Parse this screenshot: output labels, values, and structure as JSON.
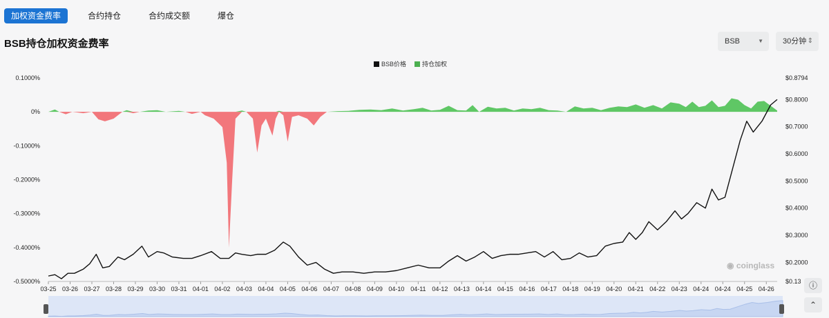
{
  "tabs": [
    {
      "label": "加权资金费率",
      "active": true
    },
    {
      "label": "合约持仓",
      "active": false
    },
    {
      "label": "合约成交额",
      "active": false
    },
    {
      "label": "爆仓",
      "active": false
    }
  ],
  "page_title": "BSB持仓加权资金费率",
  "controls": {
    "symbol_select": "BSB",
    "interval_select": "30分钟"
  },
  "watermark": "coinglass",
  "colors": {
    "accent": "#1c74d3",
    "positive": "#5fc765",
    "negative": "#f2777c",
    "price_line": "#111111"
  },
  "chart_data": {
    "type": "line",
    "legend": [
      {
        "name": "BSB价格",
        "color": "#111111"
      },
      {
        "name": "持仓加权",
        "color": "#4caf50"
      }
    ],
    "x_ticks": [
      "03-25",
      "03-26",
      "03-27",
      "03-28",
      "03-29",
      "03-30",
      "03-31",
      "04-01",
      "04-02",
      "04-03",
      "04-04",
      "04-05",
      "04-06",
      "04-07",
      "04-08",
      "04-09",
      "04-10",
      "04-11",
      "04-12",
      "04-13",
      "04-14",
      "04-15",
      "04-16",
      "04-17",
      "04-18",
      "04-19",
      "04-20",
      "04-21",
      "04-22",
      "04-23",
      "04-24",
      "04-24",
      "04-25",
      "04-26"
    ],
    "y_left_ticks": [
      "0.1000%",
      "0%",
      "-0.1000%",
      "-0.2000%",
      "-0.3000%",
      "-0.4000%",
      "-0.5000%"
    ],
    "y_left_range": [
      -0.5,
      0.1
    ],
    "y_right_ticks": [
      "$0.8794",
      "$0.8000",
      "$0.7000",
      "$0.6000",
      "$0.5000",
      "$0.4000",
      "$0.3000",
      "$0.2000",
      "$0.13"
    ],
    "y_right_range": [
      0.13,
      0.8794
    ],
    "x_range": [
      0,
      33.5
    ],
    "series": [
      {
        "name": "BSB价格",
        "axis": "right",
        "points": [
          [
            0,
            0.15
          ],
          [
            0.3,
            0.155
          ],
          [
            0.6,
            0.14
          ],
          [
            0.9,
            0.16
          ],
          [
            1.2,
            0.16
          ],
          [
            1.6,
            0.175
          ],
          [
            1.9,
            0.195
          ],
          [
            2.2,
            0.23
          ],
          [
            2.5,
            0.18
          ],
          [
            2.8,
            0.185
          ],
          [
            3.2,
            0.22
          ],
          [
            3.5,
            0.21
          ],
          [
            3.9,
            0.23
          ],
          [
            4.3,
            0.26
          ],
          [
            4.6,
            0.22
          ],
          [
            5.0,
            0.24
          ],
          [
            5.3,
            0.235
          ],
          [
            5.7,
            0.22
          ],
          [
            6.2,
            0.215
          ],
          [
            6.6,
            0.215
          ],
          [
            7.0,
            0.225
          ],
          [
            7.5,
            0.24
          ],
          [
            7.9,
            0.215
          ],
          [
            8.3,
            0.215
          ],
          [
            8.6,
            0.235
          ],
          [
            8.9,
            0.23
          ],
          [
            9.3,
            0.225
          ],
          [
            9.6,
            0.23
          ],
          [
            10.0,
            0.23
          ],
          [
            10.4,
            0.245
          ],
          [
            10.8,
            0.275
          ],
          [
            11.1,
            0.26
          ],
          [
            11.5,
            0.22
          ],
          [
            11.9,
            0.19
          ],
          [
            12.3,
            0.2
          ],
          [
            12.7,
            0.175
          ],
          [
            13.1,
            0.16
          ],
          [
            13.5,
            0.165
          ],
          [
            14.0,
            0.165
          ],
          [
            14.5,
            0.16
          ],
          [
            15.0,
            0.165
          ],
          [
            15.5,
            0.165
          ],
          [
            16.0,
            0.17
          ],
          [
            16.5,
            0.18
          ],
          [
            17.0,
            0.19
          ],
          [
            17.5,
            0.18
          ],
          [
            18.0,
            0.18
          ],
          [
            18.4,
            0.205
          ],
          [
            18.8,
            0.225
          ],
          [
            19.2,
            0.205
          ],
          [
            19.6,
            0.22
          ],
          [
            20.0,
            0.24
          ],
          [
            20.4,
            0.215
          ],
          [
            20.8,
            0.225
          ],
          [
            21.2,
            0.23
          ],
          [
            21.6,
            0.23
          ],
          [
            22.0,
            0.235
          ],
          [
            22.4,
            0.24
          ],
          [
            22.8,
            0.22
          ],
          [
            23.2,
            0.24
          ],
          [
            23.6,
            0.21
          ],
          [
            24.0,
            0.215
          ],
          [
            24.4,
            0.235
          ],
          [
            24.8,
            0.22
          ],
          [
            25.2,
            0.225
          ],
          [
            25.6,
            0.26
          ],
          [
            26.0,
            0.27
          ],
          [
            26.4,
            0.275
          ],
          [
            26.7,
            0.31
          ],
          [
            27.0,
            0.285
          ],
          [
            27.3,
            0.31
          ],
          [
            27.6,
            0.35
          ],
          [
            28.0,
            0.32
          ],
          [
            28.4,
            0.35
          ],
          [
            28.8,
            0.39
          ],
          [
            29.1,
            0.36
          ],
          [
            29.4,
            0.38
          ],
          [
            29.8,
            0.42
          ],
          [
            30.2,
            0.4
          ],
          [
            30.5,
            0.47
          ],
          [
            30.8,
            0.43
          ],
          [
            31.1,
            0.44
          ],
          [
            31.5,
            0.56
          ],
          [
            31.8,
            0.65
          ],
          [
            32.1,
            0.72
          ],
          [
            32.4,
            0.68
          ],
          [
            32.8,
            0.72
          ],
          [
            33.2,
            0.78
          ],
          [
            33.5,
            0.8
          ]
        ]
      },
      {
        "name": "持仓加权",
        "axis": "left",
        "points": [
          [
            0,
            0
          ],
          [
            0.3,
            0.007
          ],
          [
            0.5,
            0
          ],
          [
            0.8,
            -0.007
          ],
          [
            1.1,
            0
          ],
          [
            1.6,
            -0.004
          ],
          [
            2.0,
            0
          ],
          [
            2.3,
            -0.022
          ],
          [
            2.6,
            -0.028
          ],
          [
            3.0,
            -0.02
          ],
          [
            3.4,
            0
          ],
          [
            3.6,
            0.005
          ],
          [
            3.9,
            -0.004
          ],
          [
            4.2,
            0
          ],
          [
            4.6,
            0.004
          ],
          [
            5.0,
            0.005
          ],
          [
            5.4,
            0
          ],
          [
            6.0,
            0.003
          ],
          [
            6.3,
            0
          ],
          [
            6.6,
            -0.006
          ],
          [
            7.0,
            0
          ],
          [
            7.2,
            -0.01
          ],
          [
            7.6,
            -0.02
          ],
          [
            8.0,
            -0.045
          ],
          [
            8.2,
            -0.15
          ],
          [
            8.3,
            -0.4
          ],
          [
            8.45,
            -0.2
          ],
          [
            8.6,
            -0.02
          ],
          [
            8.9,
            0.004
          ],
          [
            9.1,
            0
          ],
          [
            9.4,
            -0.02
          ],
          [
            9.6,
            -0.12
          ],
          [
            9.8,
            -0.04
          ],
          [
            10.0,
            -0.02
          ],
          [
            10.3,
            -0.07
          ],
          [
            10.45,
            -0.02
          ],
          [
            10.6,
            0.003
          ],
          [
            10.8,
            -0.01
          ],
          [
            11.0,
            -0.088
          ],
          [
            11.2,
            -0.015
          ],
          [
            11.5,
            -0.01
          ],
          [
            11.9,
            -0.02
          ],
          [
            12.2,
            -0.04
          ],
          [
            12.5,
            -0.015
          ],
          [
            12.8,
            0
          ],
          [
            13.3,
            0.002
          ],
          [
            13.8,
            0.003
          ],
          [
            14.3,
            0.006
          ],
          [
            14.8,
            0.007
          ],
          [
            15.3,
            0.005
          ],
          [
            15.8,
            0.01
          ],
          [
            16.3,
            0.004
          ],
          [
            16.8,
            0.008
          ],
          [
            17.2,
            0.012
          ],
          [
            17.6,
            0.004
          ],
          [
            18.0,
            0.006
          ],
          [
            18.4,
            0.018
          ],
          [
            18.8,
            0.005
          ],
          [
            19.2,
            0.004
          ],
          [
            19.5,
            0.02
          ],
          [
            19.8,
            0
          ],
          [
            20.2,
            0.015
          ],
          [
            20.6,
            0.01
          ],
          [
            21.0,
            0.012
          ],
          [
            21.4,
            0.004
          ],
          [
            21.8,
            0.01
          ],
          [
            22.2,
            0.008
          ],
          [
            22.6,
            0.012
          ],
          [
            23.0,
            0.005
          ],
          [
            23.4,
            0.004
          ],
          [
            23.8,
            0
          ],
          [
            24.2,
            0.016
          ],
          [
            24.6,
            0.01
          ],
          [
            25.0,
            0.012
          ],
          [
            25.4,
            0.005
          ],
          [
            25.8,
            0.012
          ],
          [
            26.2,
            0.016
          ],
          [
            26.6,
            0.014
          ],
          [
            27.0,
            0.022
          ],
          [
            27.4,
            0.012
          ],
          [
            27.8,
            0.02
          ],
          [
            28.2,
            0.01
          ],
          [
            28.6,
            0.028
          ],
          [
            29.0,
            0.024
          ],
          [
            29.3,
            0.014
          ],
          [
            29.6,
            0.03
          ],
          [
            29.9,
            0.014
          ],
          [
            30.2,
            0.018
          ],
          [
            30.5,
            0.034
          ],
          [
            30.8,
            0.014
          ],
          [
            31.1,
            0.018
          ],
          [
            31.4,
            0.04
          ],
          [
            31.7,
            0.036
          ],
          [
            32.0,
            0.02
          ],
          [
            32.3,
            0.01
          ],
          [
            32.6,
            0.03
          ],
          [
            32.9,
            0.032
          ],
          [
            33.2,
            0.018
          ],
          [
            33.5,
            0.004
          ]
        ]
      }
    ]
  }
}
